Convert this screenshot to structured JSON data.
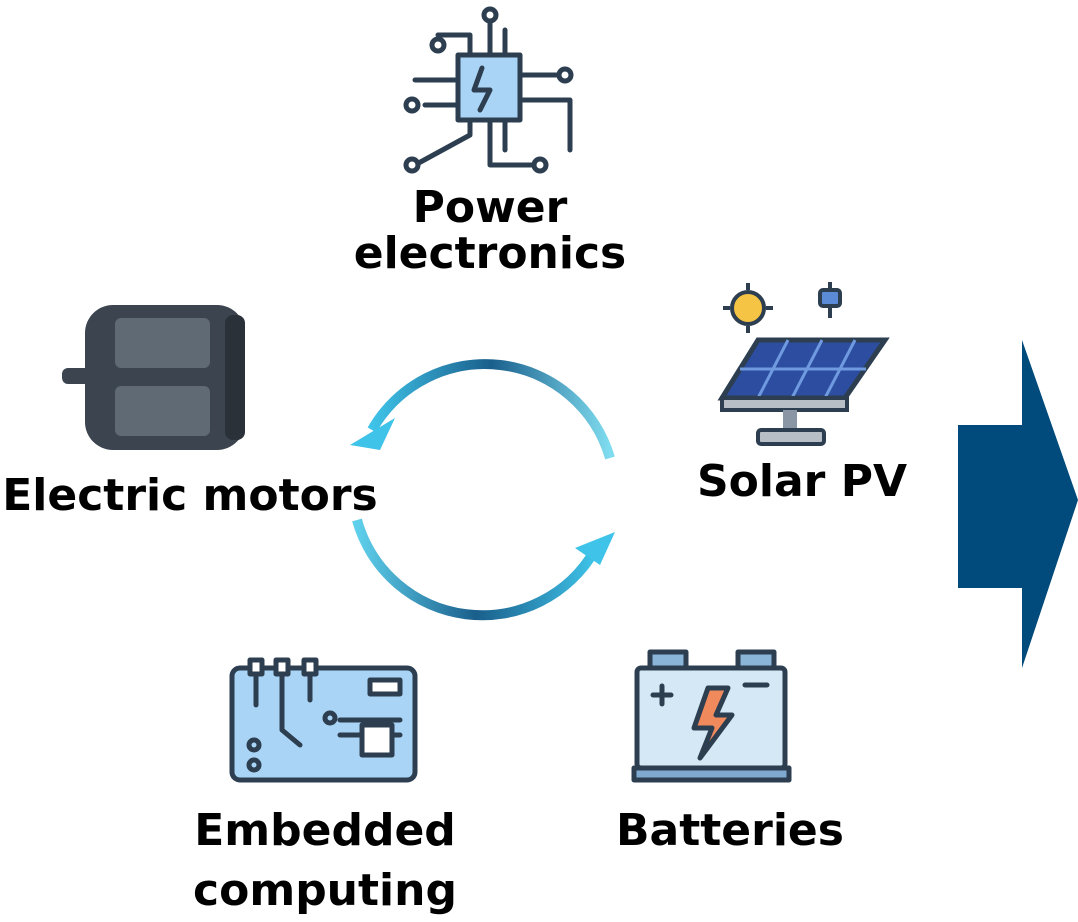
{
  "nodes": [
    {
      "label": [
        "Power",
        "electronics"
      ]
    },
    {
      "label": [
        "Electric motors"
      ]
    },
    {
      "label": [
        "Solar PV"
      ]
    },
    {
      "label": [
        "Embedded",
        "computing"
      ]
    },
    {
      "label": [
        "Batteries"
      ]
    }
  ]
}
